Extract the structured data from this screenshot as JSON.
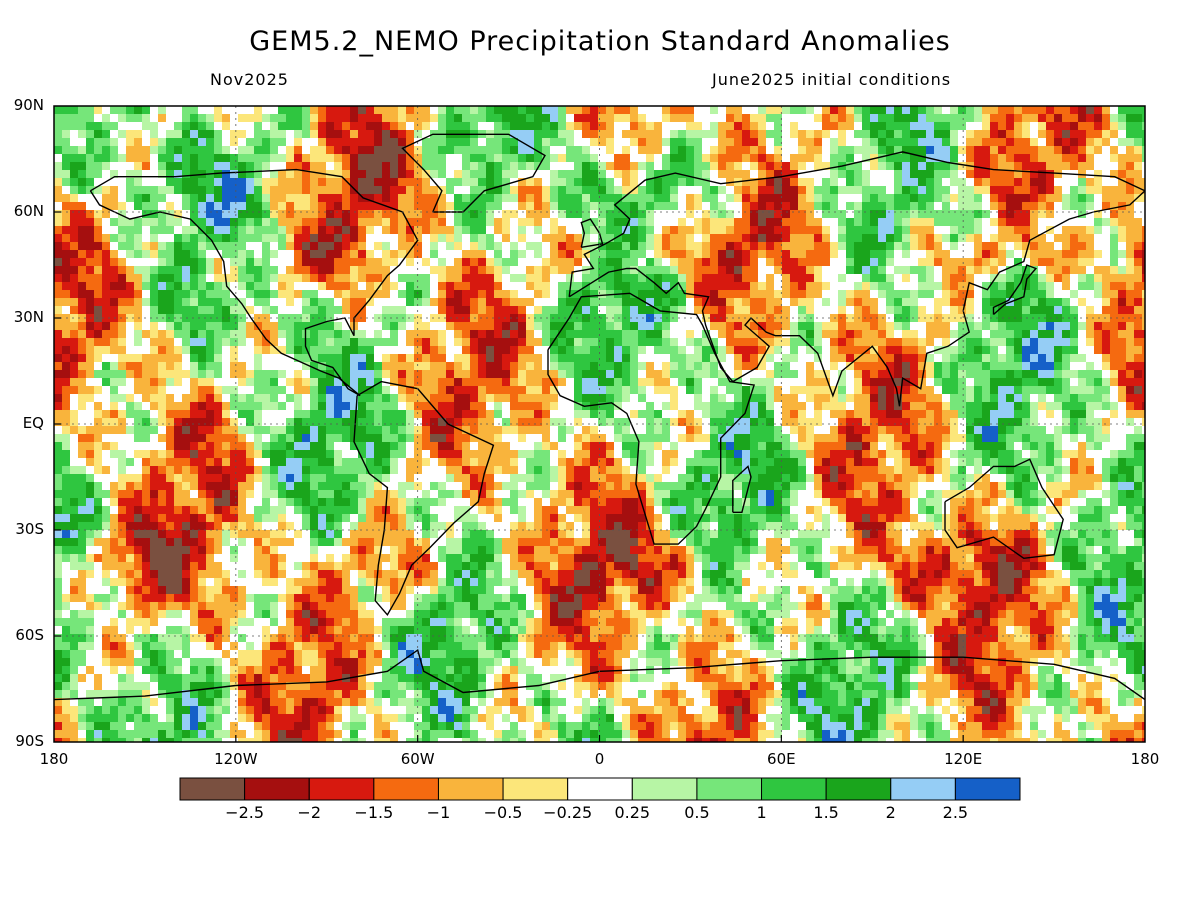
{
  "header": {
    "title": "GEM5.2_NEMO Precipitation Standard Anomalies",
    "month": "Nov2025",
    "init": "June2025 initial conditions"
  },
  "axes": {
    "lat_labels": [
      "90N",
      "60N",
      "30N",
      "EQ",
      "30S",
      "60S",
      "90S"
    ],
    "lat_values": [
      90,
      60,
      30,
      0,
      -30,
      -60,
      -90
    ],
    "lon_labels": [
      "180",
      "120W",
      "60W",
      "0",
      "60E",
      "120E",
      "180"
    ],
    "lon_values": [
      -180,
      -120,
      -60,
      0,
      60,
      120,
      180
    ]
  },
  "colorbar": {
    "colors": [
      "#7a5040",
      "#a50f0f",
      "#d7190f",
      "#f56a10",
      "#f9b43c",
      "#fce67a",
      "#ffffff",
      "#b7f5a5",
      "#76e67a",
      "#2fc640",
      "#1aa51c",
      "#95cdf5",
      "#1560c8"
    ],
    "labels": [
      "−2.5",
      "−2",
      "−1.5",
      "−1",
      "−0.5",
      "−0.25",
      "0.25",
      "0.5",
      "1",
      "1.5",
      "2",
      "2.5"
    ]
  },
  "map_colors": {
    "coastline": "#000000",
    "grid": "#555555"
  }
}
